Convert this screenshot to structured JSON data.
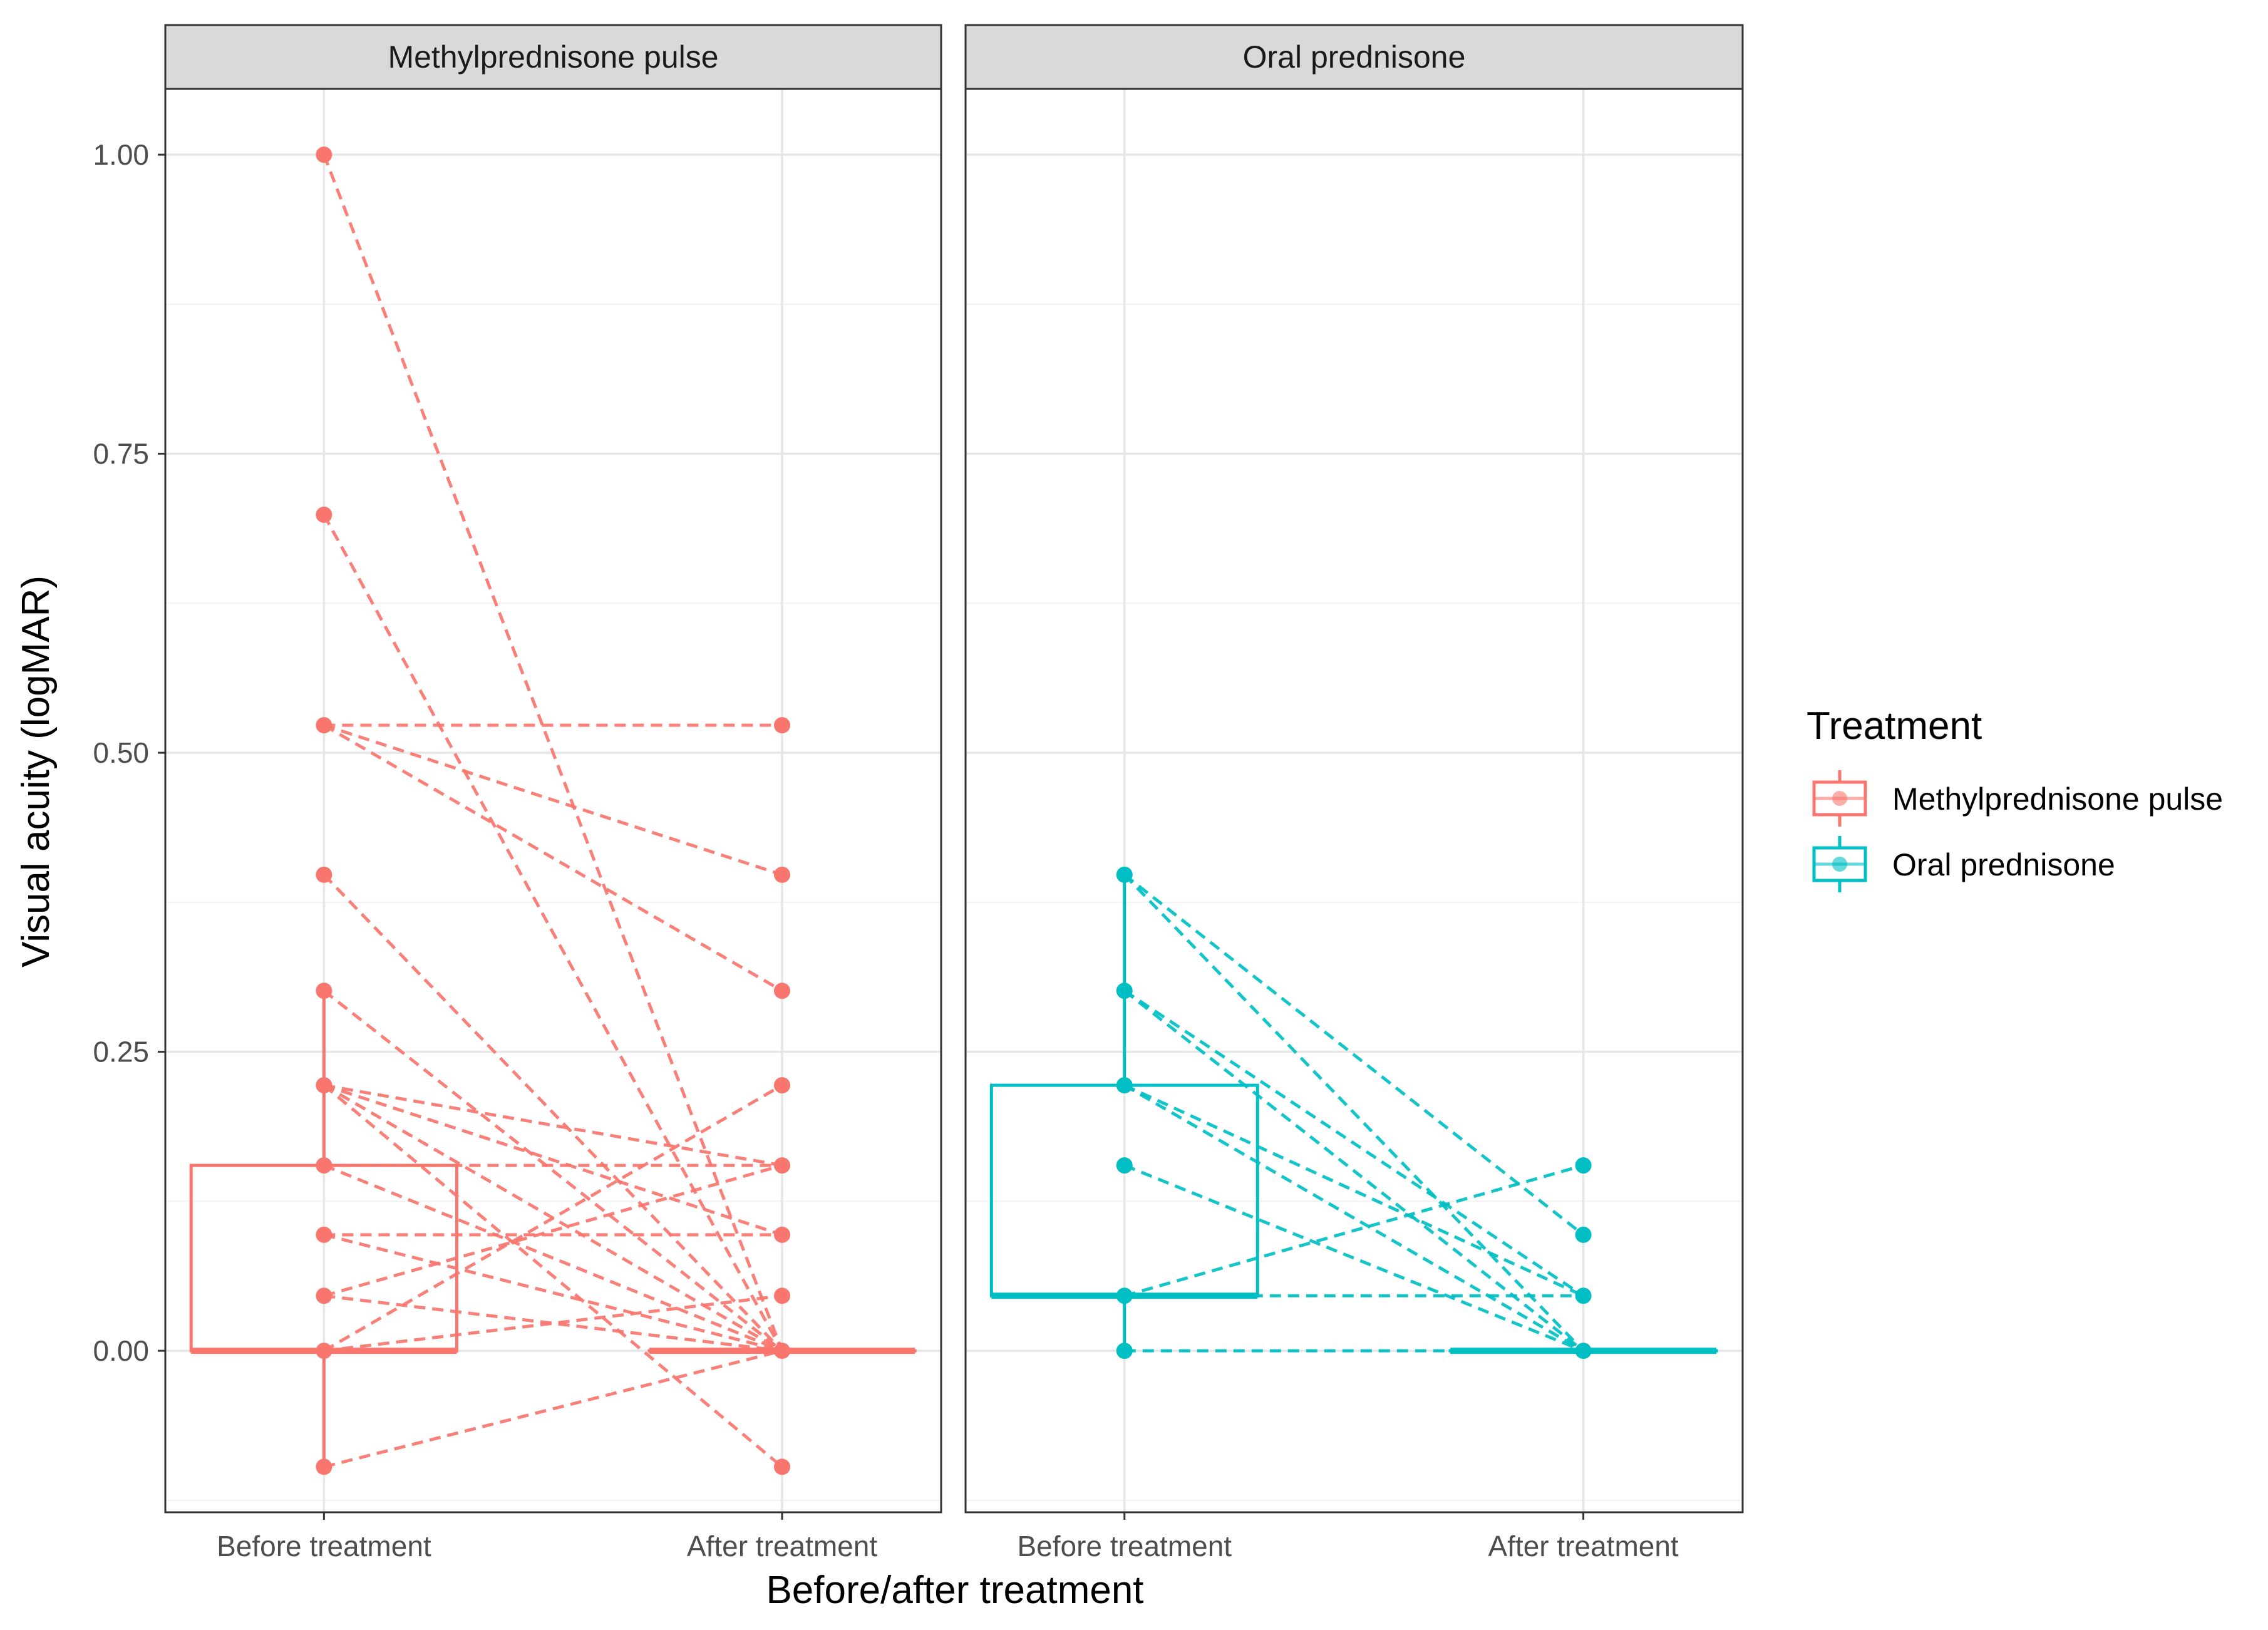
{
  "chart_data": {
    "type": "box",
    "xlabel": "Before/after treatment",
    "ylabel": "Visual acuity (logMAR)",
    "ylim": [
      -0.135,
      1.055
    ],
    "y_ticks": [
      0.0,
      0.25,
      0.5,
      0.75,
      1.0
    ],
    "y_tick_labels": [
      "0.00",
      "0.25",
      "0.50",
      "0.75",
      "1.00"
    ],
    "categories": [
      "Before treatment",
      "After treatment"
    ],
    "grid": true,
    "legend": {
      "title": "Treatment",
      "position": "right",
      "entries": [
        {
          "label": "Methylprednisone pulse",
          "color": "#F8766D"
        },
        {
          "label": "Oral prednisone",
          "color": "#00BFC4"
        }
      ]
    },
    "panels": [
      {
        "title": "Methylprednisone pulse",
        "color": "#F8766D",
        "boxes": [
          {
            "category": "Before treatment",
            "q1": 0.0,
            "median": 0.0,
            "q3": 0.155,
            "whisker_low": -0.097,
            "whisker_high": 0.301
          },
          {
            "category": "After treatment",
            "q1": 0.0,
            "median": 0.0,
            "q3": 0.0,
            "whisker_low": 0.0,
            "whisker_high": 0.0
          }
        ],
        "outliers_before": [
          1.0,
          0.699,
          0.523,
          0.398
        ],
        "outliers_after": [
          0.523,
          0.398,
          0.301,
          0.222,
          0.155,
          0.097,
          0.046,
          -0.097
        ],
        "pairs": [
          [
            1.0,
            0.0
          ],
          [
            0.699,
            0.0
          ],
          [
            0.523,
            0.523
          ],
          [
            0.523,
            0.301
          ],
          [
            0.523,
            0.398
          ],
          [
            0.398,
            0.0
          ],
          [
            0.301,
            0.0
          ],
          [
            0.222,
            0.0
          ],
          [
            0.222,
            0.097
          ],
          [
            0.222,
            0.155
          ],
          [
            0.222,
            -0.097
          ],
          [
            0.155,
            0.155
          ],
          [
            0.155,
            0.0
          ],
          [
            0.097,
            0.097
          ],
          [
            0.097,
            0.0
          ],
          [
            0.046,
            0.0
          ],
          [
            0.046,
            0.155
          ],
          [
            0.0,
            0.222
          ],
          [
            0.0,
            0.046
          ],
          [
            -0.097,
            0.0
          ]
        ]
      },
      {
        "title": "Oral prednisone",
        "color": "#00BFC4",
        "boxes": [
          {
            "category": "Before treatment",
            "q1": 0.046,
            "median": 0.046,
            "q3": 0.222,
            "whisker_low": 0.0,
            "whisker_high": 0.398
          },
          {
            "category": "After treatment",
            "q1": 0.0,
            "median": 0.0,
            "q3": 0.0,
            "whisker_low": 0.0,
            "whisker_high": 0.0
          }
        ],
        "outliers_before": [],
        "outliers_after": [
          0.155,
          0.097,
          0.046
        ],
        "pairs": [
          [
            0.398,
            0.097
          ],
          [
            0.398,
            0.0
          ],
          [
            0.301,
            0.046
          ],
          [
            0.301,
            0.0
          ],
          [
            0.222,
            0.0
          ],
          [
            0.222,
            0.046
          ],
          [
            0.155,
            0.0
          ],
          [
            0.046,
            0.155
          ],
          [
            0.046,
            0.046
          ],
          [
            0.0,
            0.0
          ]
        ]
      }
    ]
  }
}
